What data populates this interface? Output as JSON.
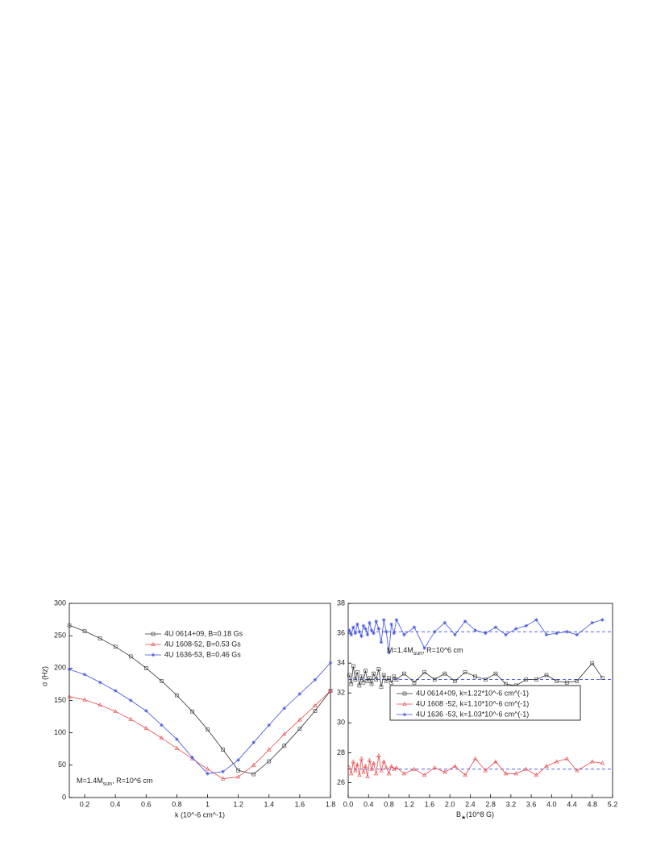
{
  "chart_data": [
    {
      "type": "line",
      "x_label": "k (10^-6  cm^-1)",
      "y_label": "σ   (Hz)",
      "x": [
        0.1,
        0.2,
        0.3,
        0.4,
        0.5,
        0.6,
        0.7,
        0.8,
        0.9,
        1.0,
        1.1,
        1.2,
        1.3,
        1.4,
        1.5,
        1.6,
        1.7,
        1.8
      ],
      "xlim": [
        0.1,
        1.8
      ],
      "xticks": [
        0.2,
        0.4,
        0.6,
        0.8,
        1.0,
        1.2,
        1.4,
        1.6,
        1.8
      ],
      "ylim": [
        0,
        300
      ],
      "yticks": [
        0,
        50,
        100,
        150,
        200,
        250,
        300
      ],
      "legend_position": "upper center",
      "legend_frame": false,
      "annotation": {
        "text": "M=1.4M",
        "sub": "sun",
        "tail": ", R=10^6 cm"
      },
      "series": [
        {
          "name": "4U 0614+09, B=0.18 Gs",
          "color": "#333333",
          "marker": "square",
          "values": [
            266,
            257,
            246,
            233,
            218,
            200,
            180,
            158,
            133,
            105,
            74,
            42,
            36,
            56,
            80,
            106,
            134,
            165
          ]
        },
        {
          "name": "4U 1608-52,  B=0.53 Gs",
          "color": "#e8474a",
          "marker": "triangle",
          "values": [
            156,
            151,
            143,
            133,
            121,
            107,
            92,
            76,
            60,
            44,
            29,
            32,
            50,
            74,
            98,
            120,
            142,
            165
          ]
        },
        {
          "name": "4U 1636-53,  B=0.46 Gs",
          "color": "#3d4fe0",
          "marker": "star",
          "values": [
            198,
            190,
            178,
            165,
            150,
            134,
            112,
            90,
            62,
            37,
            40,
            58,
            85,
            112,
            138,
            160,
            182,
            208
          ]
        }
      ]
    },
    {
      "type": "line",
      "x_label": {
        "text": "B",
        "sub": "★",
        "tail": "(10^8 G)"
      },
      "x": [
        0.02,
        0.06,
        0.1,
        0.14,
        0.18,
        0.22,
        0.26,
        0.3,
        0.34,
        0.38,
        0.42,
        0.46,
        0.5,
        0.55,
        0.6,
        0.65,
        0.7,
        0.75,
        0.8,
        0.85,
        0.9,
        0.95,
        1.1,
        1.3,
        1.5,
        1.7,
        1.9,
        2.1,
        2.3,
        2.5,
        2.7,
        2.9,
        3.1,
        3.3,
        3.5,
        3.7,
        3.9,
        4.1,
        4.3,
        4.5,
        4.8,
        5.0
      ],
      "xlim": [
        0,
        5.2
      ],
      "xticks": [
        {
          "value": 0,
          "label": "0.0"
        },
        0.4,
        0.8,
        1.2,
        1.6,
        {
          "value": 2,
          "label": "2.0"
        },
        2.4,
        2.8,
        3.2,
        3.6,
        {
          "value": 4,
          "label": "4.0"
        },
        4.4,
        4.8,
        5.2
      ],
      "ylim": [
        25,
        38
      ],
      "yticks": [
        26,
        28,
        30,
        32,
        34,
        36,
        38
      ],
      "legend_position": "center right",
      "legend_frame": true,
      "annotation": {
        "text": "M=1.4M",
        "sub": "sun",
        "tail": ", R=10^6 cm"
      },
      "reference_lines": [
        {
          "value": 36.1,
          "color": "#3d4fe0"
        },
        {
          "value": 32.9,
          "color": "#3d4fe0"
        },
        {
          "value": 26.9,
          "color": "#3d4fe0"
        }
      ],
      "series": [
        {
          "name": "4U 0614+09, k=1.22*10^-6 cm^(-1)",
          "color": "#333333",
          "marker": "square",
          "values": [
            33.2,
            32.6,
            33.8,
            32.9,
            33.4,
            32.5,
            33.1,
            32.7,
            33.5,
            32.8,
            33.0,
            32.6,
            33.3,
            32.9,
            33.6,
            32.4,
            33.2,
            32.8,
            33.0,
            32.7,
            33.1,
            32.9,
            33.3,
            32.7,
            33.4,
            32.9,
            33.3,
            32.8,
            33.4,
            33.1,
            32.9,
            33.3,
            32.6,
            32.5,
            32.9,
            32.9,
            33.2,
            32.8,
            32.7,
            32.8,
            34.0,
            33.0
          ]
        },
        {
          "name": "4U 1608 -52, k=1.10*10^-6 cm^(-1)",
          "color": "#e8474a",
          "marker": "triangle",
          "values": [
            27.0,
            26.6,
            27.4,
            26.8,
            27.2,
            26.5,
            27.6,
            26.7,
            27.1,
            26.4,
            27.5,
            26.9,
            27.3,
            26.6,
            27.8,
            26.8,
            27.4,
            27.0,
            26.6,
            27.1,
            26.9,
            27.0,
            26.6,
            26.9,
            26.5,
            27.0,
            26.7,
            27.1,
            26.5,
            27.6,
            26.8,
            27.4,
            26.6,
            26.6,
            26.9,
            26.5,
            27.1,
            27.4,
            27.6,
            26.8,
            27.4,
            27.3
          ]
        },
        {
          "name": "4U 1636 -53, k=1.03*10^-6 cm^(-1)",
          "color": "#3d4fe0",
          "marker": "star",
          "values": [
            36.2,
            35.9,
            36.4,
            36.0,
            36.6,
            36.1,
            35.8,
            36.5,
            36.3,
            35.9,
            36.7,
            36.2,
            36.0,
            36.8,
            36.3,
            35.4,
            36.9,
            36.1,
            34.7,
            36.6,
            36.0,
            36.9,
            35.9,
            36.4,
            35.0,
            36.1,
            36.7,
            35.9,
            36.8,
            36.2,
            36.0,
            36.4,
            35.9,
            36.3,
            36.5,
            36.9,
            35.9,
            36.0,
            36.1,
            35.9,
            36.7,
            36.9
          ]
        }
      ]
    }
  ]
}
